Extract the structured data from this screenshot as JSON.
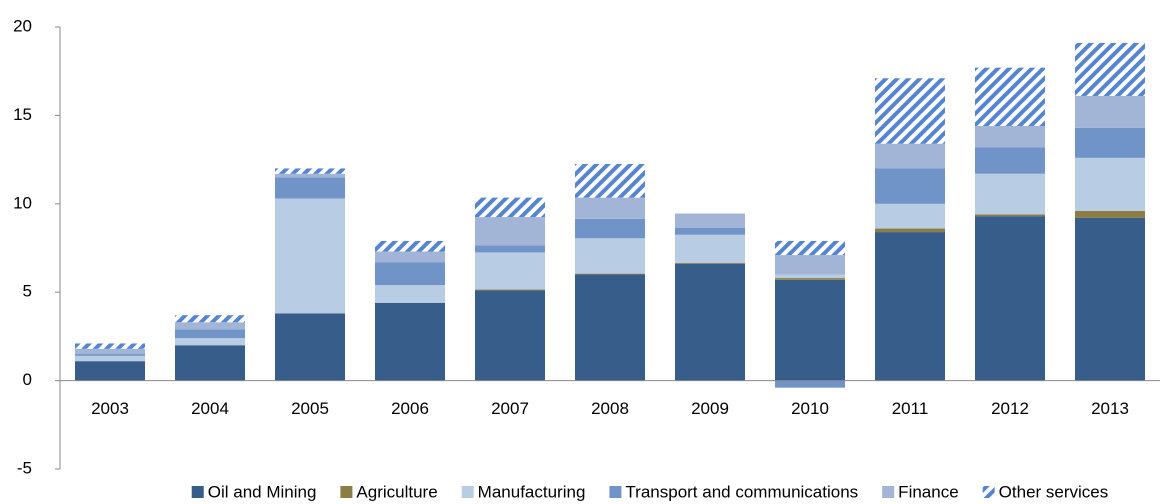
{
  "chart_data": {
    "type": "stacked-bar",
    "categories": [
      "2003",
      "2004",
      "2005",
      "2006",
      "2007",
      "2008",
      "2009",
      "2010",
      "2011",
      "2012",
      "2013"
    ],
    "series": [
      {
        "name": "Oil and Mining",
        "color": "#375d8a",
        "values": [
          1.1,
          2.0,
          3.8,
          4.4,
          5.1,
          6.0,
          6.6,
          5.7,
          8.4,
          9.3,
          9.2
        ]
      },
      {
        "name": "Agriculture",
        "color": "#8c7d45",
        "values": [
          0,
          0,
          0,
          0,
          0.05,
          0.05,
          0.05,
          0.1,
          0.2,
          0.1,
          0.4
        ]
      },
      {
        "name": "Manufacturing",
        "color": "#b8cce4",
        "values": [
          0.3,
          0.4,
          6.5,
          1.0,
          2.1,
          2.0,
          1.6,
          0.2,
          1.4,
          2.3,
          3.0
        ]
      },
      {
        "name": "Transport and communications",
        "color": "#7094c8",
        "values": [
          0.1,
          0.5,
          1.2,
          1.3,
          0.4,
          1.1,
          0.4,
          -0.4,
          2.0,
          1.5,
          1.7
        ]
      },
      {
        "name": "Finance",
        "color": "#a2b5d6",
        "values": [
          0.3,
          0.4,
          0.2,
          0.6,
          1.6,
          1.2,
          0.8,
          1.1,
          1.4,
          1.2,
          1.8
        ]
      },
      {
        "name": "Other services",
        "color": "#5585d0",
        "pattern": "hatch",
        "values": [
          0.3,
          0.4,
          0.3,
          0.6,
          1.1,
          1.9,
          0,
          0.8,
          3.7,
          3.3,
          3.0
        ]
      }
    ],
    "ylim": [
      -5,
      20
    ],
    "yticks": [
      -5,
      0,
      5,
      10,
      15,
      20
    ],
    "legend": "bottom"
  }
}
